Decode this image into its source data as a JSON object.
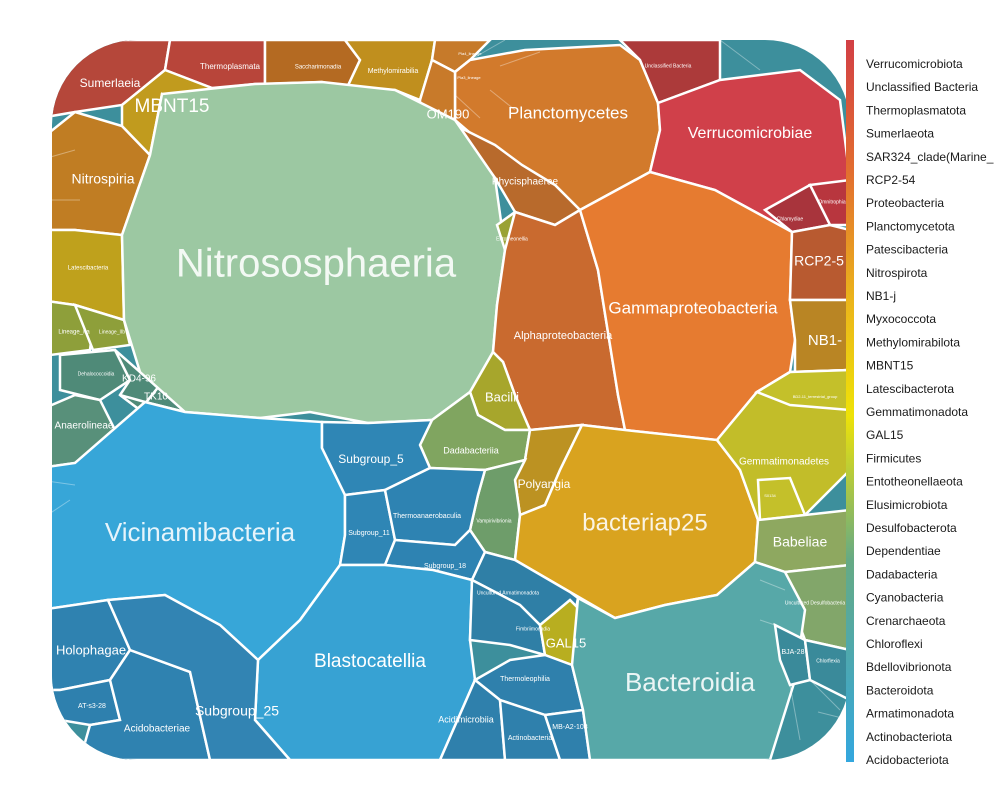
{
  "chart_data": {
    "type": "voronoi-treemap",
    "legend": {
      "placement": "right",
      "entries": [
        {
          "name": "Verrucomicrobiota",
          "color": "#d23f45"
        },
        {
          "name": "Unclassified Bacteria",
          "color": "#d4433f"
        },
        {
          "name": "Thermoplasmatota",
          "color": "#d4493d"
        },
        {
          "name": "Sumerlaeota",
          "color": "#d6503b"
        },
        {
          "name": "SAR324_clade(Marine_",
          "color": "#d85a38"
        },
        {
          "name": "RCP2-54",
          "color": "#dc6234"
        },
        {
          "name": "Proteobacteria",
          "color": "#e26d30"
        },
        {
          "name": "Planctomycetota",
          "color": "#e4772f"
        },
        {
          "name": "Patescibacteria",
          "color": "#e6832c"
        },
        {
          "name": "Nitrospirota",
          "color": "#e88e28"
        },
        {
          "name": "NB1-j",
          "color": "#e99a24"
        },
        {
          "name": "Myxococcota",
          "color": "#eaa720"
        },
        {
          "name": "Methylomirabilota",
          "color": "#ebb41b"
        },
        {
          "name": "MBNT15",
          "color": "#ecc216"
        },
        {
          "name": "Latescibacterota",
          "color": "#edd111"
        },
        {
          "name": "Gemmatimonadota",
          "color": "#eedf0c"
        },
        {
          "name": "GAL15",
          "color": "#eee208"
        },
        {
          "name": "Firmicutes",
          "color": "#cfd624"
        },
        {
          "name": "Entotheonellaeota",
          "color": "#b1c93c"
        },
        {
          "name": "Elusimicrobiota",
          "color": "#93bb55"
        },
        {
          "name": "Desulfobacterota",
          "color": "#78b06d"
        },
        {
          "name": "Dependentiae",
          "color": "#66aa84"
        },
        {
          "name": "Dadabacteria",
          "color": "#58a799"
        },
        {
          "name": "Cyanobacteria",
          "color": "#4ea4ab"
        },
        {
          "name": "Crenarchaeota",
          "color": "#47a3bb"
        },
        {
          "name": "Chloroflexi",
          "color": "#40a3c9"
        },
        {
          "name": "Bdellovibrionota",
          "color": "#3aa4d4"
        },
        {
          "name": "Bacteroidota",
          "color": "#36a5da"
        },
        {
          "name": "Armatimonadota",
          "color": "#34a6dc"
        },
        {
          "name": "Actinobacteriota",
          "color": "#33a6dd"
        },
        {
          "name": "Acidobacteriota",
          "color": "#33a7de"
        }
      ]
    },
    "cells": [
      {
        "label": "Nitrososphaeria",
        "color": "#9cc8a2"
      },
      {
        "label": "Vicinamibacteria",
        "color": "#37a6d8"
      },
      {
        "label": "Blastocatellia",
        "color": "#37a2d3"
      },
      {
        "label": "Gammaproteobacteria",
        "color": "#e67b30"
      },
      {
        "label": "Alphaproteobacteria",
        "color": "#c96a2f"
      },
      {
        "label": "bacteriap25",
        "color": "#d9a31f"
      },
      {
        "label": "Bacteroidia",
        "color": "#57a8a8"
      },
      {
        "label": "Verrucomicrobiae",
        "color": "#d0404a"
      },
      {
        "label": "Planctomycetes",
        "color": "#d27a2c"
      },
      {
        "label": "Phycisphaerae",
        "color": "#b86a2c"
      },
      {
        "label": "Nitrospiria",
        "color": "#c07d23"
      },
      {
        "label": "MBNT15",
        "color": "#c19b1e"
      },
      {
        "label": "Sumerlaeia",
        "color": "#b5473a"
      },
      {
        "label": "Thermoplasmata",
        "color": "#b8453a"
      },
      {
        "label": "Saccharimonadia",
        "color": "#b46a22"
      },
      {
        "label": "Methylomirabilia",
        "color": "#c08f1e"
      },
      {
        "label": "OM190",
        "color": "#c87a2a"
      },
      {
        "label": "Pla4_lineage",
        "color": "#c67a2a"
      },
      {
        "label": "Pla3_lineage",
        "color": "#c67a2a"
      },
      {
        "label": "Unclassified Bacteria",
        "color": "#ac3a3a"
      },
      {
        "label": "Omnitrophia",
        "color": "#b8363e"
      },
      {
        "label": "Chlamydiae",
        "color": "#a8343c"
      },
      {
        "label": "RCP2-5",
        "color": "#b85a30"
      },
      {
        "label": "NB1-",
        "color": "#b98524"
      },
      {
        "label": "Latescibacteria",
        "color": "#bfa11c"
      },
      {
        "label": "Lineage_IIa",
        "color": "#8e9f3a"
      },
      {
        "label": "Lineage_IIb",
        "color": "#8e9f3a"
      },
      {
        "label": "Entotheonellia",
        "color": "#9aa235"
      },
      {
        "label": "Bacilli",
        "color": "#a7a62c"
      },
      {
        "label": "Dadabacteriia",
        "color": "#80a560"
      },
      {
        "label": "Polyangia",
        "color": "#bc9222"
      },
      {
        "label": "Vampirivibrionia",
        "color": "#6e9d6a"
      },
      {
        "label": "Gemmatimonadetes",
        "color": "#c2bd29"
      },
      {
        "label": "BD2-11_terrestrial_group",
        "color": "#c4c02a"
      },
      {
        "label": "S0134",
        "color": "#c4c02a"
      },
      {
        "label": "Babeliae",
        "color": "#8ea860"
      },
      {
        "label": "Uncultured Desulfobacteria",
        "color": "#82a66a"
      },
      {
        "label": "GAL15",
        "color": "#b8ae20"
      },
      {
        "label": "Anaerolineae",
        "color": "#58907a"
      },
      {
        "label": "Dehalococcoidia",
        "color": "#4f8a78"
      },
      {
        "label": "KD4-96",
        "color": "#4f8a78"
      },
      {
        "label": "TK10",
        "color": "#4f8a78"
      },
      {
        "label": "Subgroup_5",
        "color": "#2f86b5"
      },
      {
        "label": "Subgroup_11",
        "color": "#2f86b5"
      },
      {
        "label": "Thermoanaerobaculia",
        "color": "#2e83b2"
      },
      {
        "label": "Subgroup_18",
        "color": "#2e83b2"
      },
      {
        "label": "Holophagae",
        "color": "#2f82b0"
      },
      {
        "label": "AT-s3-28",
        "color": "#2e80ae"
      },
      {
        "label": "Acidobacteriae",
        "color": "#2f82b0"
      },
      {
        "label": "Subgroup_25",
        "color": "#3284b3"
      },
      {
        "label": "Uncultured Armatimonadota",
        "color": "#2f7fa6"
      },
      {
        "label": "Fimbriimonadia",
        "color": "#2f7fa6"
      },
      {
        "label": "Thermoleophilia",
        "color": "#2f80ac"
      },
      {
        "label": "Acidimicrobiia",
        "color": "#2f80ac"
      },
      {
        "label": "Actinobacteria",
        "color": "#2f80ac"
      },
      {
        "label": "MB-A2-108",
        "color": "#2f80ac"
      },
      {
        "label": "BJA-28",
        "color": "#3a8a9a"
      },
      {
        "label": "Chlorflexia",
        "color": "#3a8a9a"
      }
    ]
  }
}
